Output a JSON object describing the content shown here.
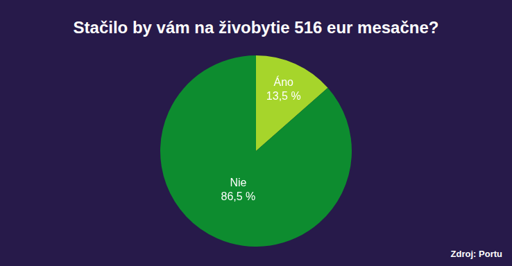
{
  "chart_data": {
    "type": "pie",
    "title": "Stačilo by vám na živobytie 516 eur mesačne?",
    "categories": [
      "Áno",
      "Nie"
    ],
    "values": [
      13.5,
      86.5
    ],
    "value_labels": [
      "13,5 %",
      "86,5 %"
    ],
    "colors": [
      "#a6d52b",
      "#0d8c2f"
    ],
    "data_labels": true,
    "source": "Zdroj: Portu"
  }
}
